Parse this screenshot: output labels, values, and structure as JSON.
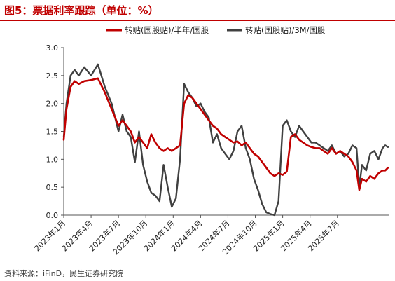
{
  "title": "图5：票据利率跟踪（单位：%）",
  "source": "资料来源：iFinD，民生证券研究院",
  "chart_data": {
    "type": "line",
    "ylim": [
      0,
      3.0
    ],
    "y_ticks": [
      "0.0",
      "0.5",
      "1.0",
      "1.5",
      "2.0",
      "2.5",
      "3.0"
    ],
    "x_ticks": [
      "2023年1月",
      "2023年4月",
      "2023年7月",
      "2023年10月",
      "2024年1月",
      "2024年4月",
      "2024年7月",
      "2024年10月",
      "2025年1月",
      "2025年4月",
      "2025年7月"
    ],
    "xlim_months": [
      0,
      11.9
    ],
    "grid": false,
    "legend_position": "top",
    "series": [
      {
        "name": "转贴(国股贴)/半年/国股",
        "color": "#c00000",
        "x": [
          0,
          0.1,
          0.25,
          0.4,
          0.55,
          0.75,
          1.0,
          1.25,
          1.5,
          1.75,
          2.0,
          2.15,
          2.3,
          2.45,
          2.6,
          2.75,
          2.9,
          3.05,
          3.2,
          3.35,
          3.5,
          3.65,
          3.8,
          3.95,
          4.1,
          4.25,
          4.4,
          4.55,
          4.7,
          4.85,
          5.0,
          5.15,
          5.3,
          5.45,
          5.6,
          5.75,
          5.9,
          6.05,
          6.2,
          6.35,
          6.5,
          6.65,
          6.8,
          6.95,
          7.1,
          7.25,
          7.4,
          7.55,
          7.7,
          7.85,
          8.0,
          8.15,
          8.3,
          8.45,
          8.6,
          8.75,
          8.9,
          9.05,
          9.2,
          9.35,
          9.5,
          9.65,
          9.8,
          9.95,
          10.1,
          10.25,
          10.4,
          10.55,
          10.7,
          10.8,
          10.9,
          11.05,
          11.2,
          11.35,
          11.5,
          11.65,
          11.75,
          11.85
        ],
        "y": [
          1.35,
          1.9,
          2.3,
          2.4,
          2.35,
          2.4,
          2.42,
          2.45,
          2.2,
          1.9,
          1.6,
          1.7,
          1.6,
          1.5,
          1.3,
          1.4,
          1.3,
          1.2,
          1.45,
          1.3,
          1.2,
          1.15,
          1.2,
          1.15,
          1.2,
          1.25,
          2.0,
          2.15,
          2.1,
          2.0,
          1.9,
          1.8,
          1.7,
          1.6,
          1.55,
          1.45,
          1.4,
          1.35,
          1.3,
          1.32,
          1.25,
          1.3,
          1.2,
          1.1,
          1.05,
          0.95,
          0.85,
          0.75,
          0.7,
          0.75,
          0.72,
          0.78,
          1.4,
          1.45,
          1.35,
          1.3,
          1.25,
          1.22,
          1.2,
          1.2,
          1.15,
          1.1,
          1.2,
          1.1,
          1.15,
          1.1,
          1.05,
          0.95,
          0.8,
          0.45,
          0.65,
          0.6,
          0.7,
          0.65,
          0.75,
          0.8,
          0.8,
          0.85
        ]
      },
      {
        "name": "转贴(国股贴)/3M/国股",
        "color": "#404040",
        "x": [
          0,
          0.1,
          0.25,
          0.4,
          0.55,
          0.75,
          1.0,
          1.25,
          1.5,
          1.75,
          2.0,
          2.15,
          2.3,
          2.45,
          2.6,
          2.75,
          2.9,
          3.05,
          3.2,
          3.35,
          3.5,
          3.65,
          3.8,
          3.95,
          4.1,
          4.25,
          4.4,
          4.55,
          4.7,
          4.85,
          5.0,
          5.15,
          5.3,
          5.45,
          5.6,
          5.75,
          5.9,
          6.05,
          6.2,
          6.35,
          6.5,
          6.65,
          6.8,
          6.95,
          7.1,
          7.25,
          7.4,
          7.55,
          7.7,
          7.85,
          8.0,
          8.15,
          8.3,
          8.45,
          8.6,
          8.75,
          8.9,
          9.05,
          9.2,
          9.35,
          9.5,
          9.65,
          9.8,
          9.95,
          10.1,
          10.25,
          10.4,
          10.55,
          10.7,
          10.8,
          10.9,
          11.05,
          11.2,
          11.35,
          11.5,
          11.65,
          11.75,
          11.85
        ],
        "y": [
          1.4,
          2.0,
          2.5,
          2.6,
          2.5,
          2.65,
          2.5,
          2.7,
          2.3,
          2.0,
          1.5,
          1.8,
          1.5,
          1.4,
          0.95,
          1.5,
          0.9,
          0.6,
          0.4,
          0.35,
          0.25,
          0.9,
          0.5,
          0.15,
          0.3,
          1.0,
          2.35,
          2.2,
          2.1,
          1.95,
          2.0,
          1.85,
          1.75,
          1.3,
          1.45,
          1.2,
          1.1,
          1.0,
          1.15,
          1.5,
          1.6,
          1.2,
          1.0,
          0.65,
          0.45,
          0.2,
          0.05,
          0.02,
          0.0,
          0.25,
          1.6,
          1.7,
          1.5,
          1.4,
          1.6,
          1.5,
          1.4,
          1.3,
          1.3,
          1.25,
          1.2,
          1.15,
          1.25,
          1.1,
          1.15,
          1.05,
          1.1,
          1.25,
          1.2,
          0.5,
          0.9,
          0.8,
          1.1,
          1.15,
          1.0,
          1.2,
          1.25,
          1.22
        ]
      }
    ]
  }
}
